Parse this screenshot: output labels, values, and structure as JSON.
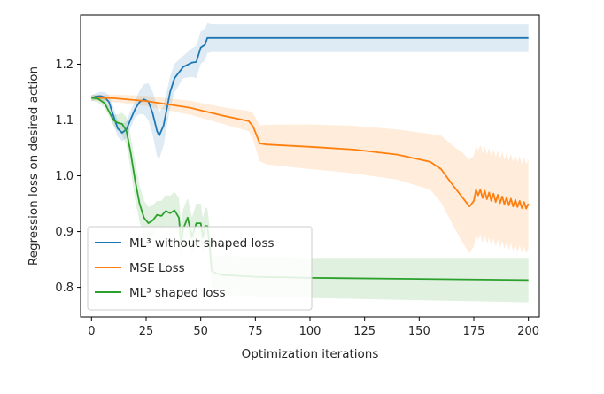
{
  "chart_data": {
    "type": "line",
    "title": "",
    "xlabel": "Optimization iterations",
    "ylabel": "Regression loss on desired action",
    "xlim": [
      -5,
      205
    ],
    "ylim": [
      0.747,
      1.288
    ],
    "xticks": [
      0,
      25,
      50,
      75,
      100,
      125,
      150,
      175,
      200
    ],
    "yticks": [
      0.8,
      0.9,
      1.0,
      1.1,
      1.2
    ],
    "ytick_labels": [
      "0.8",
      "0.9",
      "1.0",
      "1.1",
      "1.2"
    ],
    "grid": false,
    "legend_position": "lower-left",
    "series": [
      {
        "name": "ML³ without shaped loss",
        "color": "#1f77b4",
        "points": [
          [
            0,
            1.139
          ],
          [
            2,
            1.142
          ],
          [
            4,
            1.143
          ],
          [
            6,
            1.141
          ],
          [
            8,
            1.132
          ],
          [
            10,
            1.108
          ],
          [
            12,
            1.085
          ],
          [
            14,
            1.077
          ],
          [
            16,
            1.083
          ],
          [
            18,
            1.102
          ],
          [
            20,
            1.12
          ],
          [
            22,
            1.132
          ],
          [
            24,
            1.137
          ],
          [
            26,
            1.133
          ],
          [
            28,
            1.112
          ],
          [
            30,
            1.08
          ],
          [
            31,
            1.072
          ],
          [
            33,
            1.09
          ],
          [
            36,
            1.15
          ],
          [
            38,
            1.175
          ],
          [
            42,
            1.195
          ],
          [
            46,
            1.203
          ],
          [
            48,
            1.204
          ],
          [
            50,
            1.23
          ],
          [
            52,
            1.235
          ],
          [
            53,
            1.247
          ],
          [
            55,
            1.247
          ],
          [
            100,
            1.247
          ],
          [
            150,
            1.247
          ],
          [
            200,
            1.247
          ]
        ],
        "band": [
          [
            0,
            0.005
          ],
          [
            5,
            0.008
          ],
          [
            10,
            0.015
          ],
          [
            20,
            0.015
          ],
          [
            30,
            0.045
          ],
          [
            35,
            0.03
          ],
          [
            42,
            0.02
          ],
          [
            49,
            0.03
          ],
          [
            52,
            0.028
          ],
          [
            55,
            0.025
          ],
          [
            100,
            0.025
          ],
          [
            200,
            0.025
          ]
        ]
      },
      {
        "name": "MSE Loss",
        "color": "#ff7f0e",
        "points": [
          [
            0,
            1.14
          ],
          [
            10,
            1.139
          ],
          [
            25,
            1.134
          ],
          [
            45,
            1.122
          ],
          [
            60,
            1.108
          ],
          [
            72,
            1.098
          ],
          [
            74,
            1.088
          ],
          [
            77,
            1.058
          ],
          [
            80,
            1.056
          ],
          [
            100,
            1.052
          ],
          [
            120,
            1.047
          ],
          [
            140,
            1.038
          ],
          [
            155,
            1.025
          ],
          [
            160,
            1.012
          ],
          [
            163,
            0.996
          ],
          [
            166,
            0.98
          ],
          [
            170,
            0.96
          ],
          [
            173,
            0.945
          ],
          [
            175,
            0.955
          ],
          [
            176,
            0.975
          ],
          [
            177,
            0.965
          ],
          [
            178,
            0.975
          ],
          [
            179,
            0.96
          ],
          [
            180,
            0.973
          ],
          [
            181,
            0.958
          ],
          [
            182,
            0.97
          ],
          [
            183,
            0.955
          ],
          [
            184,
            0.968
          ],
          [
            185,
            0.953
          ],
          [
            186,
            0.966
          ],
          [
            187,
            0.951
          ],
          [
            188,
            0.963
          ],
          [
            189,
            0.949
          ],
          [
            190,
            0.961
          ],
          [
            191,
            0.947
          ],
          [
            192,
            0.959
          ],
          [
            193,
            0.945
          ],
          [
            194,
            0.957
          ],
          [
            195,
            0.944
          ],
          [
            196,
            0.955
          ],
          [
            197,
            0.942
          ],
          [
            198,
            0.953
          ],
          [
            199,
            0.941
          ],
          [
            200,
            0.95
          ]
        ],
        "band": [
          [
            0,
            0.005
          ],
          [
            30,
            0.01
          ],
          [
            60,
            0.015
          ],
          [
            72,
            0.018
          ],
          [
            78,
            0.035
          ],
          [
            100,
            0.04
          ],
          [
            140,
            0.045
          ],
          [
            155,
            0.05
          ],
          [
            165,
            0.07
          ],
          [
            172,
            0.085
          ],
          [
            176,
            0.08
          ],
          [
            190,
            0.08
          ],
          [
            200,
            0.08
          ]
        ]
      },
      {
        "name": "ML³ shaped loss",
        "color": "#2ca02c",
        "points": [
          [
            0,
            1.14
          ],
          [
            3,
            1.138
          ],
          [
            6,
            1.13
          ],
          [
            8,
            1.115
          ],
          [
            10,
            1.1
          ],
          [
            12,
            1.095
          ],
          [
            14,
            1.093
          ],
          [
            16,
            1.08
          ],
          [
            18,
            1.04
          ],
          [
            20,
            0.99
          ],
          [
            22,
            0.95
          ],
          [
            24,
            0.925
          ],
          [
            26,
            0.915
          ],
          [
            28,
            0.92
          ],
          [
            30,
            0.93
          ],
          [
            32,
            0.928
          ],
          [
            34,
            0.937
          ],
          [
            36,
            0.933
          ],
          [
            38,
            0.938
          ],
          [
            40,
            0.925
          ],
          [
            41,
            0.88
          ],
          [
            42,
            0.905
          ],
          [
            44,
            0.925
          ],
          [
            46,
            0.89
          ],
          [
            48,
            0.915
          ],
          [
            50,
            0.915
          ],
          [
            51,
            0.89
          ],
          [
            52,
            0.91
          ],
          [
            53,
            0.91
          ],
          [
            54,
            0.88
          ],
          [
            55,
            0.83
          ],
          [
            57,
            0.825
          ],
          [
            60,
            0.822
          ],
          [
            75,
            0.819
          ],
          [
            100,
            0.817
          ],
          [
            150,
            0.815
          ],
          [
            200,
            0.813
          ]
        ],
        "band": [
          [
            0,
            0.005
          ],
          [
            10,
            0.01
          ],
          [
            20,
            0.035
          ],
          [
            30,
            0.025
          ],
          [
            40,
            0.035
          ],
          [
            50,
            0.035
          ],
          [
            55,
            0.03
          ],
          [
            60,
            0.035
          ],
          [
            100,
            0.036
          ],
          [
            150,
            0.038
          ],
          [
            200,
            0.04
          ]
        ]
      }
    ]
  }
}
